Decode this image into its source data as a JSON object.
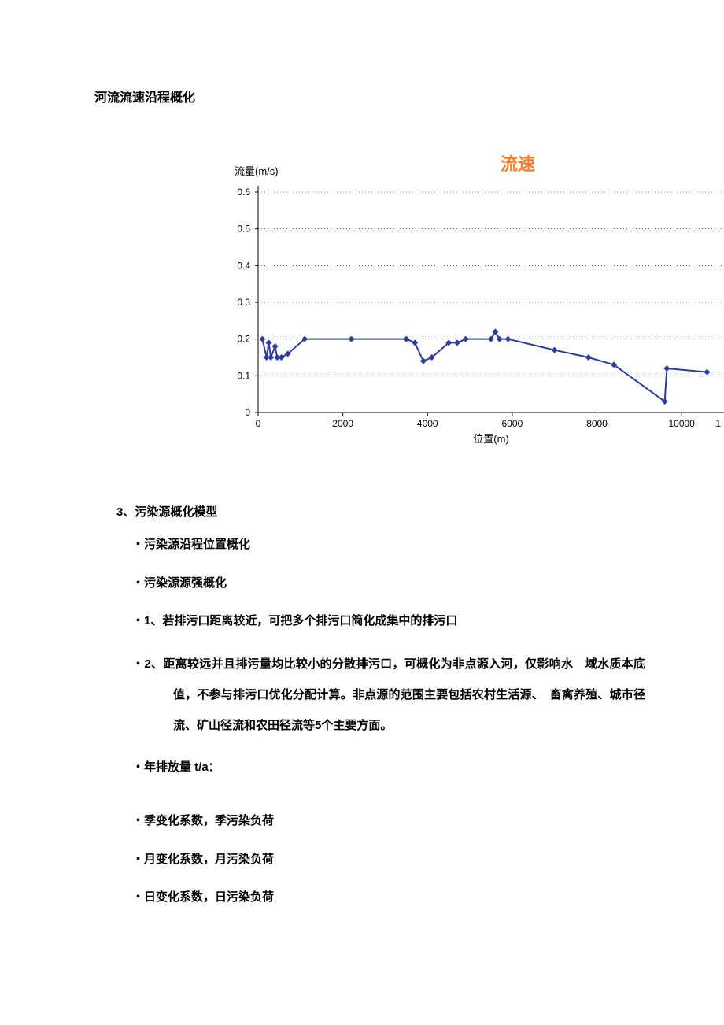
{
  "heading": "河流流速沿程概化",
  "chart": {
    "type": "line",
    "title": "流速",
    "title_color": "#ff7f27",
    "title_fontsize": 22,
    "ylabel": "流量(m/s)",
    "xlabel": "位置(m)",
    "label_fontsize": 13,
    "background_color": "#ffffff",
    "grid_color": "#000000",
    "grid_dash": "1 3",
    "axis_color": "#000000",
    "line_color": "#2a3d9a",
    "line_width": 2,
    "marker_color": "#2a3d9a",
    "marker_size": 4,
    "xlim": [
      0,
      11000
    ],
    "ylim": [
      0,
      0.6
    ],
    "xticks": [
      0,
      2000,
      4000,
      6000,
      8000,
      10000
    ],
    "yticks": [
      0,
      0.1,
      0.2,
      0.3,
      0.4,
      0.5,
      0.6
    ],
    "data": [
      {
        "x": 100,
        "y": 0.2
      },
      {
        "x": 200,
        "y": 0.15
      },
      {
        "x": 250,
        "y": 0.19
      },
      {
        "x": 300,
        "y": 0.15
      },
      {
        "x": 400,
        "y": 0.18
      },
      {
        "x": 450,
        "y": 0.15
      },
      {
        "x": 550,
        "y": 0.15
      },
      {
        "x": 700,
        "y": 0.16
      },
      {
        "x": 1100,
        "y": 0.2
      },
      {
        "x": 2200,
        "y": 0.2
      },
      {
        "x": 3500,
        "y": 0.2
      },
      {
        "x": 3700,
        "y": 0.19
      },
      {
        "x": 3900,
        "y": 0.14
      },
      {
        "x": 4100,
        "y": 0.15
      },
      {
        "x": 4500,
        "y": 0.19
      },
      {
        "x": 4700,
        "y": 0.19
      },
      {
        "x": 4900,
        "y": 0.2
      },
      {
        "x": 5500,
        "y": 0.2
      },
      {
        "x": 5600,
        "y": 0.22
      },
      {
        "x": 5700,
        "y": 0.2
      },
      {
        "x": 5900,
        "y": 0.2
      },
      {
        "x": 7000,
        "y": 0.17
      },
      {
        "x": 7800,
        "y": 0.15
      },
      {
        "x": 8400,
        "y": 0.13
      },
      {
        "x": 9600,
        "y": 0.03
      },
      {
        "x": 9650,
        "y": 0.12
      },
      {
        "x": 10600,
        "y": 0.11
      }
    ]
  },
  "section": {
    "num_title": "3、污染源概化模型",
    "bullets": [
      "・污染源沿程位置概化",
      "・污染源源强概化",
      "・1、若排污口距离较近，可把多个排污口简化成集中的排污口",
      "・2、距离较远并且排污量均比较小的分散排污口，可概化为非点源入河，仅影响水　域水质本底值，不参与排污口优化分配计算。非点源的范围主要包括农村生活源、　畜禽养殖、城市径流、矿山径流和农田径流等5个主要方面。",
      "・年排放量 t/a：",
      "・季变化系数，季污染负荷",
      "・月变化系数，月污染负荷",
      "・日变化系数，日污染负荷"
    ]
  }
}
